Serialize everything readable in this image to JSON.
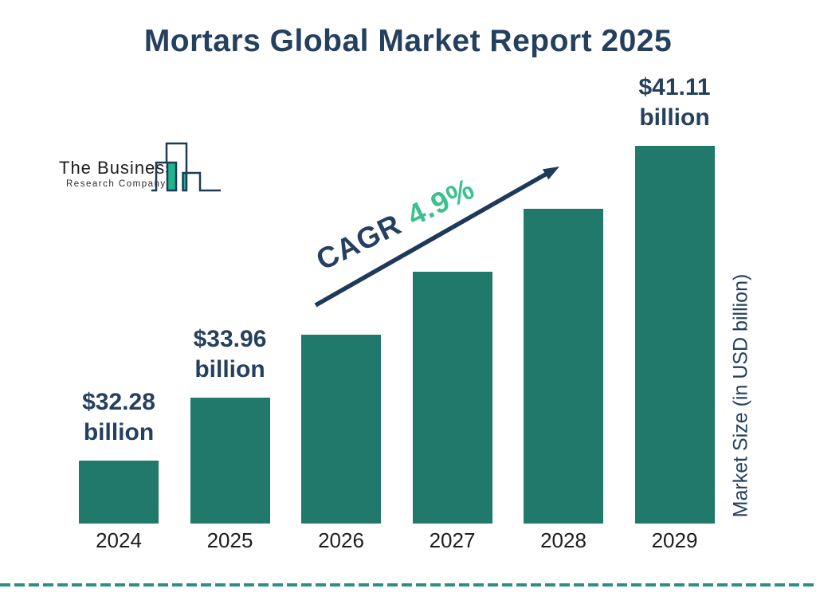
{
  "title": "Mortars Global Market Report 2025",
  "logo": {
    "name_line1": "The Business",
    "name_line2": "Research Company"
  },
  "annotations": {
    "cagr_label": "CAGR",
    "cagr_value": "4.9%"
  },
  "chart_data": {
    "type": "bar",
    "title": "Mortars Global Market Report 2025",
    "categories": [
      "2024",
      "2025",
      "2026",
      "2027",
      "2028",
      "2029"
    ],
    "values": [
      32.28,
      33.96,
      null,
      null,
      null,
      41.11
    ],
    "unit": "USD billion",
    "value_labels": [
      {
        "category": "2024",
        "line1": "$32.28",
        "line2": "billion"
      },
      {
        "category": "2025",
        "line1": "$33.96",
        "line2": "billion"
      },
      {
        "category": "2029",
        "line1": "$41.11",
        "line2": "billion"
      }
    ],
    "cagr": "4.9%",
    "ylabel": "Market Size (in USD billion)",
    "xlabel": "",
    "legend": "none",
    "grid": "off",
    "colors": {
      "bar": "#21796B",
      "accent_green": "#3BC18E",
      "navy_text": "#25405E",
      "arrow": "#1E3A5A",
      "dashed_line": "#2D8E85",
      "logo_teal": "#1FB68C",
      "logo_outline": "#1D3B55",
      "year_text": "#1D1D1D"
    }
  }
}
